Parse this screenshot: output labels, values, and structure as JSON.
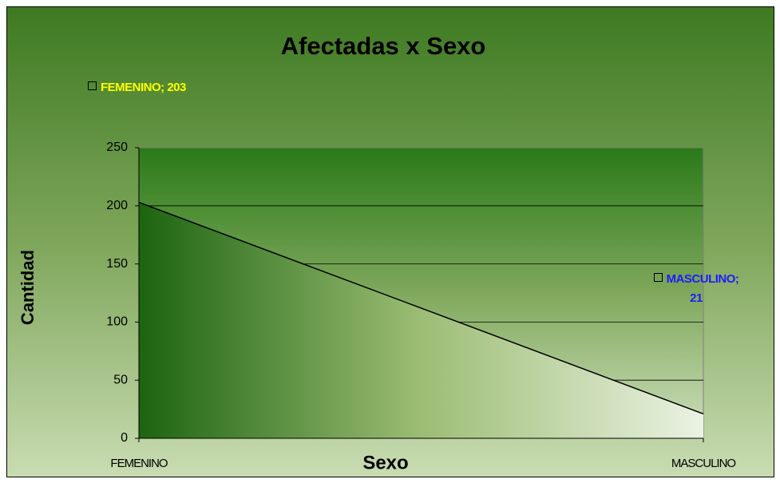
{
  "chart_data": {
    "type": "area",
    "title": "Afectadas x Sexo",
    "x_label": "Sexo",
    "y_label": "Cantidad",
    "categories": [
      "FEMENINO",
      "MASCULINO"
    ],
    "values": [
      203,
      21
    ],
    "value_labels": [
      "FEMENINO; 203",
      "MASCULINO; 21"
    ],
    "value_label_colors": [
      "#ffff00",
      "#1c1cff"
    ],
    "line_color": "#000000",
    "ylim": [
      0,
      250
    ],
    "yticks": [
      0,
      50,
      100,
      150,
      200,
      250
    ],
    "grid": true
  }
}
